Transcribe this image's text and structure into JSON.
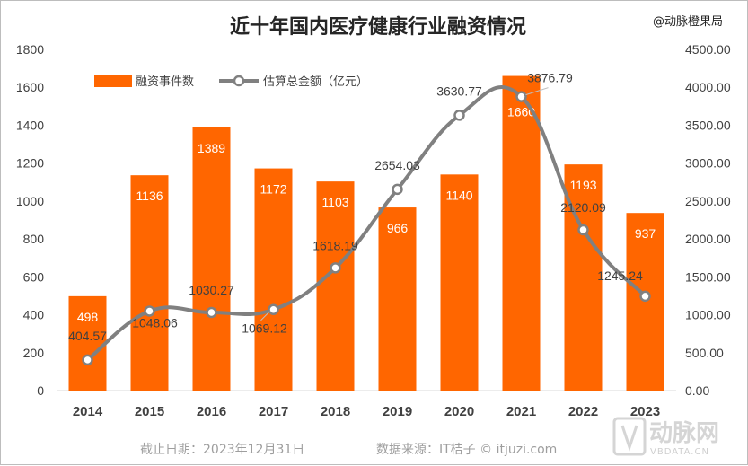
{
  "chart_data": {
    "type": "bar+line",
    "title": "近十年国内医疗健康行业融资情况",
    "categories": [
      "2014",
      "2015",
      "2016",
      "2017",
      "2018",
      "2019",
      "2020",
      "2021",
      "2022",
      "2023"
    ],
    "series": [
      {
        "name": "融资事件数",
        "type": "bar",
        "axis": "left",
        "color": "#ff6600",
        "values": [
          498,
          1136,
          1389,
          1172,
          1103,
          966,
          1140,
          1660,
          1193,
          937
        ]
      },
      {
        "name": "估算总金额（亿元）",
        "type": "line",
        "axis": "right",
        "color": "#808080",
        "values": [
          404.57,
          1048.06,
          1030.27,
          1069.12,
          1618.19,
          2654.03,
          3630.77,
          3876.79,
          2120.09,
          1245.24
        ],
        "labels": [
          "404.57",
          "1048.06",
          "1030.27",
          "1069.12",
          "1618.19",
          "2654.03",
          "3630.77",
          "3876.79",
          "2120.09",
          "1245.24"
        ]
      }
    ],
    "y_left": {
      "ylim": [
        0,
        1800
      ],
      "ticks": [
        0,
        200,
        400,
        600,
        800,
        1000,
        1200,
        1400,
        1600,
        1800
      ],
      "tick_labels": [
        "0",
        "200",
        "400",
        "600",
        "800",
        "1000",
        "1200",
        "1400",
        "1600",
        "1800"
      ]
    },
    "y_right": {
      "ylim": [
        0,
        4500
      ],
      "ticks": [
        0,
        500,
        1000,
        1500,
        2000,
        2500,
        3000,
        3500,
        4000,
        4500
      ],
      "tick_labels": [
        "0.00",
        "500.00",
        "1000.00",
        "1500.00",
        "2000.00",
        "2500.00",
        "3000.00",
        "3500.00",
        "4000.00",
        "4500.00"
      ]
    },
    "legend": [
      "融资事件数",
      "估算总金额（亿元）"
    ],
    "legend_position": "top-left",
    "grid": false
  },
  "watermark": "@动脉橙果局",
  "footer": {
    "date": "截止日期：2023年12月31日",
    "source": "数据来源：IT桔子 © itjuzi.com"
  },
  "logo": {
    "name": "动脉网",
    "sub": "VBDATA.CN"
  }
}
